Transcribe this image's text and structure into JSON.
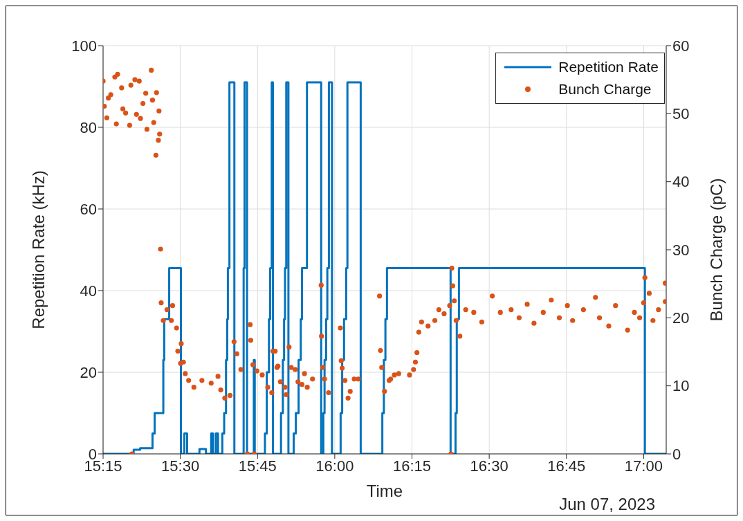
{
  "chart_data": {
    "type": "step",
    "xlabel": "Time",
    "ylabel": "Repetition Rate (kHz)",
    "y2label": "Bunch Charge (pC)",
    "annotations": [
      "Jun 07, 2023"
    ],
    "xlim": [
      15.25,
      17.073
    ],
    "xticks": [
      {
        "value": 15.25,
        "label": "15:15"
      },
      {
        "value": 15.5,
        "label": "15:30"
      },
      {
        "value": 15.75,
        "label": "15:45"
      },
      {
        "value": 16,
        "label": "16:00"
      },
      {
        "value": 16.25,
        "label": "16:15"
      },
      {
        "value": 16.5,
        "label": "16:30"
      },
      {
        "value": 16.75,
        "label": "16:45"
      },
      {
        "value": 17,
        "label": "17:00"
      }
    ],
    "ylim": [
      0,
      100
    ],
    "yticks": [
      0,
      20,
      40,
      60,
      80,
      100
    ],
    "y2lim": [
      0,
      60
    ],
    "y2ticks": [
      0,
      10,
      20,
      30,
      40,
      50,
      60
    ],
    "grid": true,
    "legend": "top right",
    "series": [
      {
        "name": "Repetition Rate",
        "color": "#0072bd",
        "line_style": "solid",
        "marker": "none",
        "x": [
          15.25,
          15.349,
          15.37,
          15.41,
          15.417,
          15.445,
          15.448,
          15.464,
          15.502,
          15.513,
          15.522,
          15.562,
          15.583,
          15.6,
          15.606,
          15.615,
          15.622,
          15.636,
          15.642,
          15.648,
          15.652,
          15.654,
          15.659,
          15.675,
          15.705,
          15.708,
          15.716,
          15.738,
          15.741,
          15.774,
          15.78,
          15.787,
          15.791,
          15.796,
          15.8,
          15.826,
          15.832,
          15.836,
          15.839,
          15.843,
          15.85,
          15.867,
          15.874,
          15.883,
          15.89,
          15.894,
          15.91,
          15.956,
          15.963,
          15.967,
          15.972,
          15.976,
          15.981,
          15.991,
          16.019,
          16.024,
          16.03,
          16.037,
          16.041,
          16.084,
          16.154,
          16.159,
          16.164,
          16.169,
          16.375,
          16.391,
          16.395,
          16.402,
          17.004,
          17.073
        ],
        "values": [
          0,
          1,
          1.4,
          5,
          10,
          23,
          33,
          45.5,
          0,
          5,
          0,
          1.2,
          0,
          5,
          0,
          5,
          0,
          5,
          10,
          23,
          33,
          45.5,
          91,
          0,
          45.5,
          91,
          0,
          23,
          0,
          5,
          20,
          33,
          45.5,
          91,
          0,
          10,
          23,
          33,
          45.5,
          91,
          0,
          5,
          10,
          23,
          33,
          45.5,
          91,
          0,
          10,
          23,
          33,
          45.5,
          91,
          0,
          10,
          23,
          33,
          45.5,
          91,
          0,
          10,
          23,
          33,
          45.5,
          0,
          10,
          33,
          45.5,
          0,
          0
        ]
      },
      {
        "name": "Bunch Charge",
        "type": "scatter",
        "axis": "y2",
        "color": "#d95319",
        "marker": "circle",
        "x": [
          15.25,
          15.254,
          15.262,
          15.267,
          15.275,
          15.288,
          15.293,
          15.297,
          15.31,
          15.314,
          15.323,
          15.336,
          15.34,
          15.343,
          15.353,
          15.358,
          15.367,
          15.371,
          15.379,
          15.388,
          15.392,
          15.406,
          15.41,
          15.414,
          15.421,
          15.423,
          15.429,
          15.431,
          15.433,
          15.436,
          15.438,
          15.445,
          15.457,
          15.471,
          15.475,
          15.488,
          15.492,
          15.501,
          15.503,
          15.51,
          15.516,
          15.527,
          15.544,
          15.57,
          15.6,
          15.622,
          15.631,
          15.644,
          15.661,
          15.674,
          15.683,
          15.696,
          15.717,
          15.726,
          15.728,
          15.735,
          15.739,
          15.748,
          15.765,
          15.783,
          15.796,
          15.8,
          15.807,
          15.813,
          15.816,
          15.824,
          15.839,
          15.843,
          15.852,
          15.859,
          15.872,
          15.881,
          15.894,
          15.902,
          15.911,
          15.928,
          15.956,
          15.957,
          15.961,
          15.967,
          15.98,
          16.018,
          16.021,
          16.024,
          16.033,
          16.043,
          16.05,
          16.063,
          16.076,
          16.145,
          16.148,
          16.152,
          16.161,
          16.176,
          16.181,
          16.193,
          16.207,
          16.242,
          16.255,
          16.261,
          16.266,
          16.272,
          16.281,
          16.302,
          16.324,
          16.337,
          16.354,
          16.372,
          16.376,
          16.379,
          16.382,
          16.387,
          16.393,
          16.405,
          16.424,
          16.45,
          16.476,
          16.51,
          16.536,
          16.571,
          16.597,
          16.623,
          16.645,
          16.675,
          16.701,
          16.727,
          16.753,
          16.77,
          16.805,
          16.844,
          16.857,
          16.887,
          16.909,
          16.948,
          16.97,
          16.987,
          17.0,
          17.004,
          17.018,
          17.03,
          17.048,
          17.07,
          17.07
        ],
        "values": [
          54.8,
          51.1,
          49.4,
          52.3,
          52.8,
          55.4,
          48.5,
          55.8,
          53.8,
          50.7,
          50.1,
          48.3,
          54.2,
          0,
          55,
          49.9,
          54.8,
          49.3,
          51.5,
          53,
          47.7,
          56.4,
          52,
          48.7,
          43.9,
          53.1,
          46.1,
          50.4,
          47,
          30.1,
          22.2,
          19.6,
          21.2,
          19.6,
          21.8,
          18.5,
          15.1,
          13.3,
          16.2,
          13.5,
          11.8,
          10.8,
          9.8,
          10.8,
          10.4,
          11.4,
          9.4,
          8.2,
          8.6,
          16.5,
          14.7,
          12.4,
          0,
          19,
          16.7,
          13.1,
          0,
          12.2,
          11.6,
          9.8,
          9,
          15.1,
          15.1,
          12.7,
          12.9,
          10.6,
          9.8,
          8.7,
          15.7,
          12.7,
          12.4,
          10.6,
          10.2,
          11.8,
          9.8,
          11,
          24.8,
          17.3,
          12.7,
          11,
          9,
          18.5,
          13.7,
          12.6,
          10.8,
          8.2,
          9.2,
          11,
          11,
          23.2,
          15.2,
          12.7,
          9.2,
          10.8,
          11,
          11.6,
          11.8,
          11.6,
          12.4,
          13.5,
          14.9,
          17.9,
          19.4,
          18.8,
          19.6,
          21.2,
          20.6,
          21.8,
          0,
          27.3,
          24.7,
          22.5,
          19.6,
          17.3,
          21.2,
          20.8,
          19.4,
          23.2,
          20.8,
          21.2,
          20,
          22,
          19.2,
          20.8,
          22.6,
          20,
          21.8,
          19.6,
          21.2,
          23,
          20,
          18.8,
          21.8,
          18.2,
          20.8,
          20,
          22.2,
          25.9,
          23.6,
          19.6,
          21.2,
          25.1,
          22.4
        ]
      }
    ]
  }
}
